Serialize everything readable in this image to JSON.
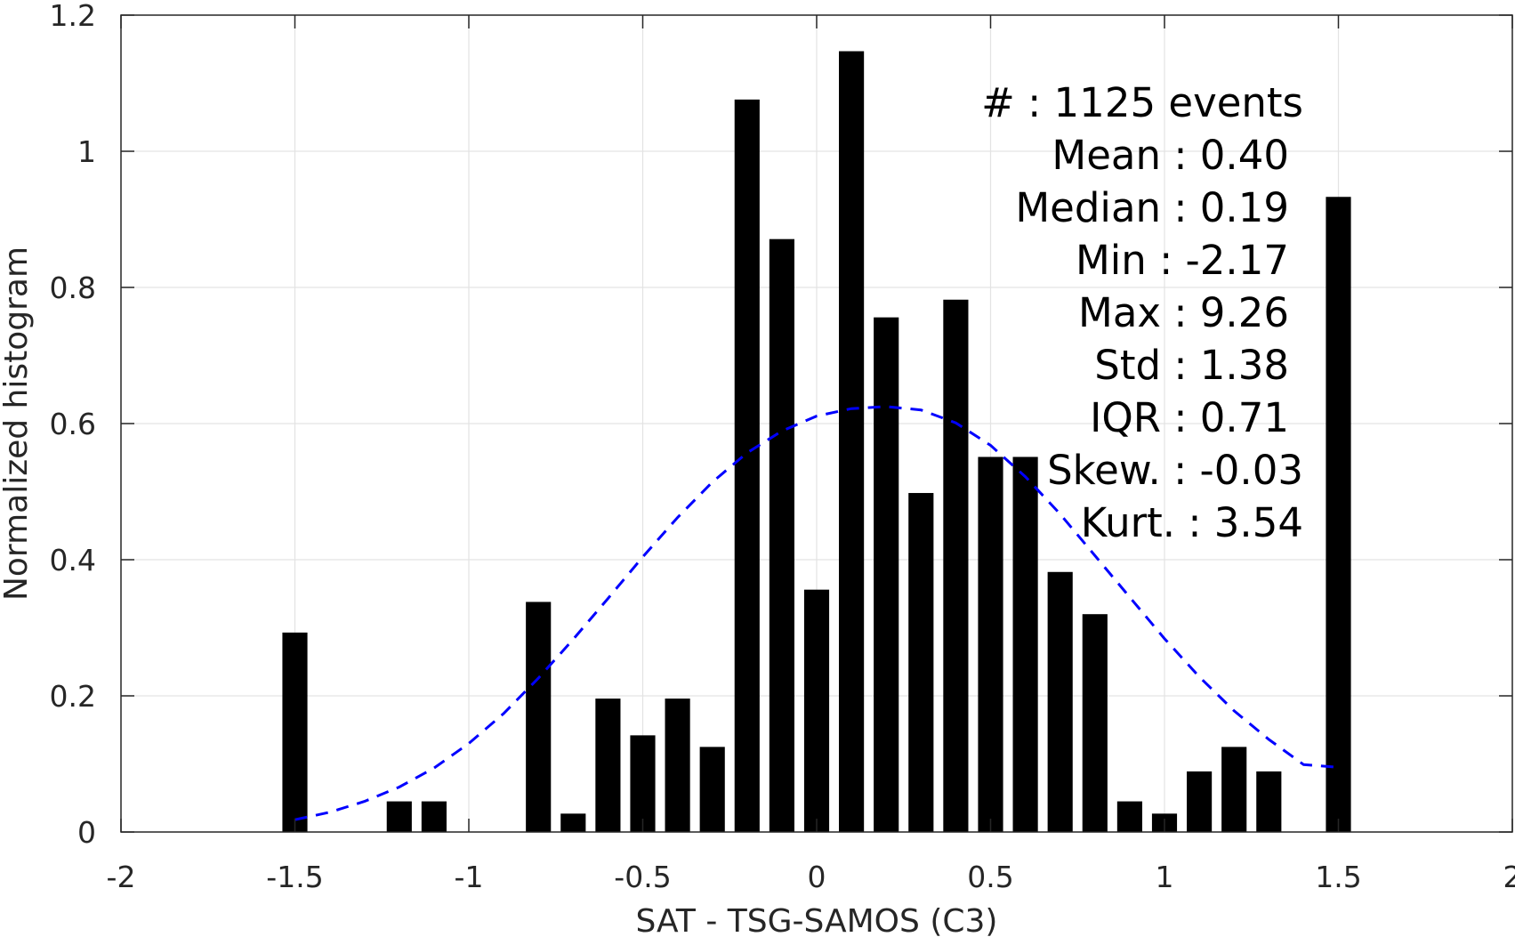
{
  "chart_data": {
    "type": "bar",
    "xlabel": "SAT - TSG-SAMOS (C3)",
    "ylabel": "Normalized histogram",
    "xlim": [
      -2,
      2
    ],
    "ylim": [
      0,
      1.2
    ],
    "xticks": [
      -2,
      -1.5,
      -1,
      -0.5,
      0,
      0.5,
      1,
      1.5,
      2
    ],
    "xtick_labels": [
      "-2",
      "-1.5",
      "-1",
      "-0.5",
      "0",
      "0.5",
      "1",
      "1.5",
      "2"
    ],
    "yticks": [
      0,
      0.2,
      0.4,
      0.6,
      0.8,
      1,
      1.2
    ],
    "ytick_labels": [
      "0",
      "0.2",
      "0.4",
      "0.6",
      "0.8",
      "1",
      "1.2"
    ],
    "grid": true,
    "bar_color": "#000000",
    "curve_color": "#0000ff",
    "bins": {
      "x": [
        -1.5,
        -1.2,
        -1.1,
        -0.8,
        -0.7,
        -0.6,
        -0.5,
        -0.4,
        -0.3,
        -0.2,
        -0.1,
        0.0,
        0.1,
        0.2,
        0.3,
        0.4,
        0.5,
        0.6,
        0.7,
        0.8,
        0.9,
        1.0,
        1.1,
        1.2,
        1.3,
        1.5
      ],
      "values": [
        0.293,
        0.045,
        0.045,
        0.338,
        0.027,
        0.196,
        0.142,
        0.196,
        0.125,
        1.076,
        0.871,
        0.356,
        1.147,
        0.756,
        0.498,
        0.782,
        0.551,
        0.551,
        0.382,
        0.32,
        0.045,
        0.027,
        0.089,
        0.125,
        0.089,
        0.933
      ]
    },
    "fit_curve": {
      "style": "dashed",
      "x": [
        -1.5,
        -1.4,
        -1.3,
        -1.2,
        -1.1,
        -1.0,
        -0.9,
        -0.8,
        -0.7,
        -0.6,
        -0.5,
        -0.4,
        -0.3,
        -0.2,
        -0.1,
        0.0,
        0.1,
        0.2,
        0.3,
        0.4,
        0.5,
        0.6,
        0.7,
        0.8,
        0.9,
        1.0,
        1.1,
        1.2,
        1.3,
        1.4,
        1.5
      ],
      "y": [
        0.018,
        0.029,
        0.045,
        0.066,
        0.094,
        0.13,
        0.174,
        0.226,
        0.283,
        0.343,
        0.404,
        0.462,
        0.514,
        0.557,
        0.589,
        0.611,
        0.622,
        0.625,
        0.62,
        0.601,
        0.568,
        0.522,
        0.467,
        0.406,
        0.345,
        0.284,
        0.228,
        0.178,
        0.136,
        0.099,
        0.095
      ]
    }
  },
  "stats": {
    "events": "#  : 1125 events",
    "mean": "Mean : 0.40",
    "median": "Median : 0.19",
    "min": "Min : -2.17",
    "max": "Max : 9.26",
    "std": "Std : 1.38",
    "iqr": "IQR : 0.71",
    "skew": "Skew. : -0.03",
    "kurt": "Kurt. : 3.54"
  }
}
